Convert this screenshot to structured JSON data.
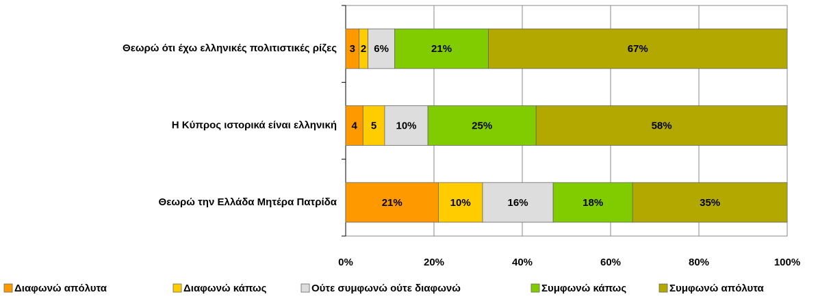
{
  "chart_data": {
    "type": "bar",
    "orientation": "horizontal",
    "stacking": "percent",
    "categories": [
      "Θεωρώ ότι έχω ελληνικές πολιτιστικές ρίζες",
      "Η Κύπρος ιστορικά είναι ελληνική",
      "Θεωρώ την Ελλάδα Μητέρα Πατρίδα"
    ],
    "series": [
      {
        "name": "Διαφωνώ απόλυτα",
        "color": "#ff9900",
        "values": [
          3,
          4,
          21
        ],
        "value_labels": [
          "3",
          "4",
          "21%"
        ]
      },
      {
        "name": "Διαφωνώ κάπως",
        "color": "#ffcc00",
        "values": [
          2,
          5,
          10
        ],
        "value_labels": [
          "2",
          "5",
          "10%"
        ]
      },
      {
        "name": "Ούτε συμφωνώ ούτε διαφωνώ",
        "color": "#dddddd",
        "values": [
          6,
          10,
          16
        ],
        "value_labels": [
          "6%",
          "10%",
          "16%"
        ]
      },
      {
        "name": "Συμφωνώ κάπως",
        "color": "#80cc00",
        "values": [
          21,
          25,
          18
        ],
        "value_labels": [
          "21%",
          "25%",
          "18%"
        ]
      },
      {
        "name": "Συμφωνώ απόλυτα",
        "color": "#b3a800",
        "values": [
          67,
          58,
          35
        ],
        "value_labels": [
          "67%",
          "58%",
          "35%"
        ]
      }
    ],
    "xlim": [
      0,
      100
    ],
    "xticks": [
      {
        "value": 0,
        "label": "0%"
      },
      {
        "value": 20,
        "label": "20%"
      },
      {
        "value": 40,
        "label": "40%"
      },
      {
        "value": 60,
        "label": "60%"
      },
      {
        "value": 80,
        "label": "80%"
      },
      {
        "value": 100,
        "label": "100%"
      }
    ],
    "grid": true,
    "legend": "bottom"
  }
}
